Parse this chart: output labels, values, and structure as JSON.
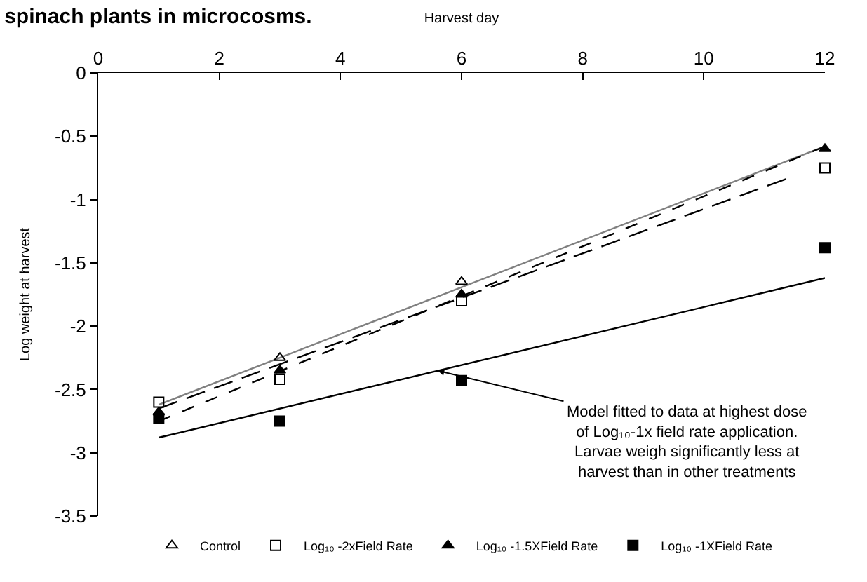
{
  "chart_data": {
    "type": "scatter",
    "title": "spinach plants in microcosms.",
    "xlabel": "Harvest day",
    "ylabel": "Log weight at harvest",
    "xlim": [
      0,
      12
    ],
    "xticks": [
      0,
      2,
      4,
      6,
      8,
      10,
      12
    ],
    "ylim": [
      -3.5,
      0
    ],
    "yticks": [
      0,
      -0.5,
      -1,
      -1.5,
      -2,
      -2.5,
      -3,
      -3.5
    ],
    "legend": "bottom",
    "series": [
      {
        "name": "Control",
        "color": "#000000",
        "marker": "triangle-open",
        "x": [
          3,
          6
        ],
        "values": [
          -2.25,
          -1.65
        ]
      },
      {
        "name": "Log₁₀ -2xField Rate",
        "color": "#000000",
        "marker": "square-open",
        "x": [
          1,
          3,
          6,
          12
        ],
        "values": [
          -2.6,
          -2.42,
          -1.8,
          -0.75
        ]
      },
      {
        "name": "Log₁₀ -1.5XField Rate",
        "color": "#000000",
        "marker": "triangle",
        "x": [
          1,
          3,
          6,
          12
        ],
        "values": [
          -2.68,
          -2.35,
          -1.75,
          -0.6
        ]
      },
      {
        "name": "Log₁₀ -1XField Rate",
        "color": "#000000",
        "marker": "square",
        "x": [
          1,
          3,
          6,
          12
        ],
        "values": [
          -2.73,
          -2.75,
          -2.43,
          -1.38
        ]
      },
      {
        "type": "line",
        "color": "#808080",
        "line_style": "solid",
        "x": [
          1,
          12
        ],
        "values": [
          -2.62,
          -0.58
        ]
      },
      {
        "type": "line",
        "color": "#000000",
        "line_style": "long-dashed",
        "x": [
          1,
          11.4
        ],
        "values": [
          -2.65,
          -0.83
        ]
      },
      {
        "type": "line",
        "color": "#000000",
        "line_style": "dashed",
        "x": [
          1,
          12
        ],
        "values": [
          -2.75,
          -0.58
        ]
      },
      {
        "type": "line",
        "color": "#000000",
        "line_style": "solid",
        "x": [
          1,
          12
        ],
        "values": [
          -2.88,
          -1.62
        ]
      }
    ],
    "annotations": [
      {
        "text": "Model fitted to data at highest dose of Log₁₀-1x field rate application. Larvae weigh significantly less at harvest than in other treatments",
        "x": 5.6,
        "y": -2.35
      }
    ]
  }
}
